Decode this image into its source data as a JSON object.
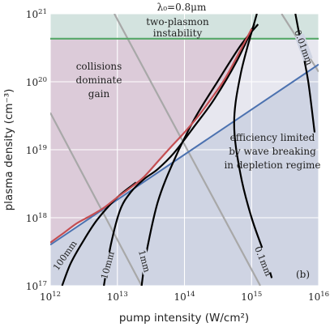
{
  "chart_data": {
    "type": "line",
    "title": "",
    "panel_label": "(b)",
    "xlabel": "pump intensity (W/cm²)",
    "ylabel": "plasma density (cm⁻³)",
    "x_scale": "log",
    "y_scale": "log",
    "xlim": [
      1000000000000.0,
      1e+16
    ],
    "ylim": [
      1e+17,
      1e+21
    ],
    "x_ticks": [
      {
        "value": 1000000000000.0,
        "base": "10",
        "exp": "12"
      },
      {
        "value": 10000000000000.0,
        "base": "10",
        "exp": "13"
      },
      {
        "value": 100000000000000.0,
        "base": "10",
        "exp": "14"
      },
      {
        "value": 1000000000000000.0,
        "base": "10",
        "exp": "15"
      },
      {
        "value": 1e+16,
        "base": "10",
        "exp": "16"
      }
    ],
    "y_ticks": [
      {
        "value": 1e+17,
        "base": "10",
        "exp": "17"
      },
      {
        "value": 1e+18,
        "base": "10",
        "exp": "18"
      },
      {
        "value": 1e+19,
        "base": "10",
        "exp": "19"
      },
      {
        "value": 1e+20,
        "base": "10",
        "exp": "20"
      },
      {
        "value": 1e+21,
        "base": "10",
        "exp": "21"
      }
    ],
    "grid": true,
    "colors": {
      "axes_bg": "#e7e7ef",
      "grid": "#ffffff",
      "collisions_region": "#dccbd9",
      "depletion_region": "#cfd4e3",
      "instability_region": "#d3e3df",
      "instability_line": "#55a868",
      "collision_line": "#c44e52",
      "wavebreaking_line": "#4c72b0",
      "contours": "#000000",
      "gray_lines": "#a8a8a8"
    },
    "annotations": [
      {
        "id": "wavelength",
        "lines": [
          "λ₀=0.8μm"
        ]
      },
      {
        "id": "two-plasmon",
        "lines": [
          "two-plasmon",
          "instability"
        ]
      },
      {
        "id": "collisions",
        "lines": [
          "collisions",
          "dominate",
          "gain"
        ]
      },
      {
        "id": "efficiency",
        "lines": [
          "efficiency limited",
          "by wave breaking",
          "in depletion regime"
        ]
      }
    ],
    "horizontal_line": {
      "name": "two-plasmon instability",
      "y": 4.3e+20
    },
    "collision_boundary": {
      "x": [
        1000000000000.0,
        1600000000000.0,
        2500000000000.0,
        4000000000000.0,
        6300000000000.0,
        10000000000000.0,
        16000000000000.0,
        25000000000000.0,
        40000000000000.0,
        63000000000000.0,
        100000000000000.0,
        160000000000000.0,
        250000000000000.0,
        400000000000000.0,
        630000000000000.0,
        1000000000000000.0
      ],
      "y": [
        4.3e+17,
        6e+17,
        8.3e+17,
        1.07e+18,
        1.4e+18,
        2e+18,
        2.8e+18,
        4e+18,
        6.7e+18,
        1.1e+19,
        1.8e+19,
        3.1e+19,
        5.6e+19,
        1.1e+20,
        2.5e+20,
        6e+20
      ]
    },
    "wavebreaking_line": {
      "x": [
        1000000000000.0,
        1e+16
      ],
      "y": [
        4e+17,
        1.8e+20
      ]
    },
    "gray_lines": [
      {
        "x": [
          1000000000000.0,
          23000000000000.0
        ],
        "y": [
          3.5e+19,
          1e+17
        ]
      },
      {
        "x": [
          9000000000000.0,
          1350000000000000.0
        ],
        "y": [
          1e+21,
          1e+17
        ]
      },
      {
        "x": [
          2800000000000000.0,
          1e+16
        ],
        "y": [
          1e+21,
          1.4e+20
        ]
      }
    ],
    "contours": [
      {
        "label": "100mm",
        "x": [
          1500000000000.0,
          2000000000000.0,
          3000000000000.0,
          5000000000000.0,
          10000000000000.0,
          19000000000000.0
        ],
        "y": [
          1e+17,
          2.1e+17,
          4.3e+17,
          9.3e+17,
          2e+18,
          3.3e+18
        ]
      },
      {
        "label": "10mm",
        "x": [
          6300000000000.0,
          8000000000000.0,
          11000000000000.0,
          16000000000000.0,
          25000000000000.0,
          40000000000000.0,
          70000000000000.0,
          140000000000000.0,
          280000000000000.0,
          600000000000000.0,
          1100000000000000.0
        ],
        "y": [
          1e+17,
          4e+17,
          1.3e+18,
          2.4e+18,
          3.7e+18,
          5.2e+18,
          9e+18,
          2.2e+19,
          5.6e+19,
          2e+20,
          7e+20
        ]
      },
      {
        "label": "1mm",
        "x": [
          23000000000000.0,
          27000000000000.0,
          40000000000000.0,
          70000000000000.0,
          140000000000000.0,
          300000000000000.0,
          700000000000000.0,
          1250000000000000.0
        ],
        "y": [
          1e+17,
          3e+17,
          1.7e+18,
          7e+18,
          2.8e+19,
          9.5e+19,
          3.5e+20,
          7e+20
        ]
      },
      {
        "label": "0.1mm",
        "x": [
          1200000000000000.0,
          700000000000000.0,
          550000000000000.0,
          680000000000000.0,
          1000000000000000.0,
          1600000000000000.0,
          2000000000000000.0
        ],
        "y": [
          1e+21,
          1.4e+20,
          2.5e+19,
          4.5e+18,
          1e+18,
          2.7e+17,
          1.3e+17
        ]
      },
      {
        "label": "0.01mm",
        "x": [
          4500000000000000.0,
          5600000000000000.0,
          7000000000000000.0,
          8700000000000000.0
        ],
        "y": [
          1e+21,
          3.2e+20,
          1e+20,
          1.8e+19
        ]
      }
    ]
  }
}
